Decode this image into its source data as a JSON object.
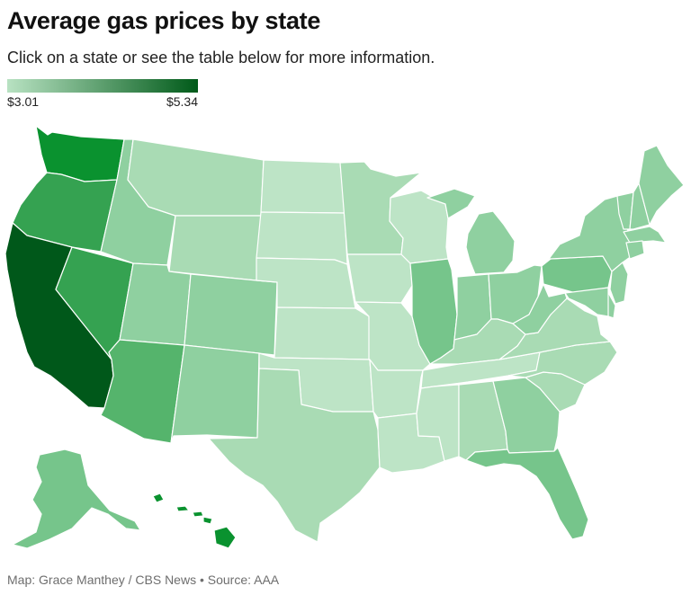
{
  "title": "Average gas prices by state",
  "subtitle": "Click on a state or see the table below for more information.",
  "legend": {
    "min_label": "$3.01",
    "max_label": "$5.34",
    "min_color": "#b8e2c2",
    "max_color": "#005a19"
  },
  "credit": {
    "byline": "Map: Grace Manthey / CBS News",
    "separator": "•",
    "source": "Source: AAA"
  },
  "colors": {
    "c1": "#bde4c6",
    "c2": "#a9dbb4",
    "c3": "#8fd0a0",
    "c4": "#76c58b",
    "c5": "#55b46c",
    "c6": "#35a251",
    "c7": "#0a922f",
    "c8": "#00581a"
  },
  "states": [
    {
      "code": "WA",
      "name": "Washington",
      "shade": "c7"
    },
    {
      "code": "OR",
      "name": "Oregon",
      "shade": "c6"
    },
    {
      "code": "CA",
      "name": "California",
      "shade": "c8"
    },
    {
      "code": "NV",
      "name": "Nevada",
      "shade": "c6"
    },
    {
      "code": "ID",
      "name": "Idaho",
      "shade": "c3"
    },
    {
      "code": "MT",
      "name": "Montana",
      "shade": "c2"
    },
    {
      "code": "WY",
      "name": "Wyoming",
      "shade": "c2"
    },
    {
      "code": "UT",
      "name": "Utah",
      "shade": "c3"
    },
    {
      "code": "AZ",
      "name": "Arizona",
      "shade": "c5"
    },
    {
      "code": "CO",
      "name": "Colorado",
      "shade": "c3"
    },
    {
      "code": "NM",
      "name": "New Mexico",
      "shade": "c3"
    },
    {
      "code": "ND",
      "name": "North Dakota",
      "shade": "c1"
    },
    {
      "code": "SD",
      "name": "South Dakota",
      "shade": "c1"
    },
    {
      "code": "NE",
      "name": "Nebraska",
      "shade": "c1"
    },
    {
      "code": "KS",
      "name": "Kansas",
      "shade": "c1"
    },
    {
      "code": "OK",
      "name": "Oklahoma",
      "shade": "c1"
    },
    {
      "code": "TX",
      "name": "Texas",
      "shade": "c2"
    },
    {
      "code": "MN",
      "name": "Minnesota",
      "shade": "c2"
    },
    {
      "code": "IA",
      "name": "Iowa",
      "shade": "c1"
    },
    {
      "code": "MO",
      "name": "Missouri",
      "shade": "c1"
    },
    {
      "code": "AR",
      "name": "Arkansas",
      "shade": "c1"
    },
    {
      "code": "LA",
      "name": "Louisiana",
      "shade": "c1"
    },
    {
      "code": "WI",
      "name": "Wisconsin",
      "shade": "c1"
    },
    {
      "code": "IL",
      "name": "Illinois",
      "shade": "c4"
    },
    {
      "code": "MI",
      "name": "Michigan",
      "shade": "c3"
    },
    {
      "code": "IN",
      "name": "Indiana",
      "shade": "c3"
    },
    {
      "code": "OH",
      "name": "Ohio",
      "shade": "c3"
    },
    {
      "code": "KY",
      "name": "Kentucky",
      "shade": "c2"
    },
    {
      "code": "TN",
      "name": "Tennessee",
      "shade": "c1"
    },
    {
      "code": "MS",
      "name": "Mississippi",
      "shade": "c1"
    },
    {
      "code": "AL",
      "name": "Alabama",
      "shade": "c2"
    },
    {
      "code": "GA",
      "name": "Georgia",
      "shade": "c3"
    },
    {
      "code": "FL",
      "name": "Florida",
      "shade": "c4"
    },
    {
      "code": "SC",
      "name": "South Carolina",
      "shade": "c2"
    },
    {
      "code": "NC",
      "name": "North Carolina",
      "shade": "c2"
    },
    {
      "code": "VA",
      "name": "Virginia",
      "shade": "c2"
    },
    {
      "code": "WV",
      "name": "West Virginia",
      "shade": "c3"
    },
    {
      "code": "PA",
      "name": "Pennsylvania",
      "shade": "c4"
    },
    {
      "code": "NY",
      "name": "New York",
      "shade": "c3"
    },
    {
      "code": "VT",
      "name": "Vermont",
      "shade": "c3"
    },
    {
      "code": "NH",
      "name": "New Hampshire",
      "shade": "c3"
    },
    {
      "code": "ME",
      "name": "Maine",
      "shade": "c3"
    },
    {
      "code": "MA",
      "name": "Massachusetts",
      "shade": "c3"
    },
    {
      "code": "CT",
      "name": "Connecticut",
      "shade": "c3"
    },
    {
      "code": "NJ",
      "name": "New Jersey",
      "shade": "c3"
    },
    {
      "code": "DE",
      "name": "Delaware",
      "shade": "c3"
    },
    {
      "code": "MD",
      "name": "Maryland",
      "shade": "c3"
    },
    {
      "code": "AK",
      "name": "Alaska",
      "shade": "c4"
    },
    {
      "code": "HI",
      "name": "Hawaii",
      "shade": "c7"
    }
  ]
}
